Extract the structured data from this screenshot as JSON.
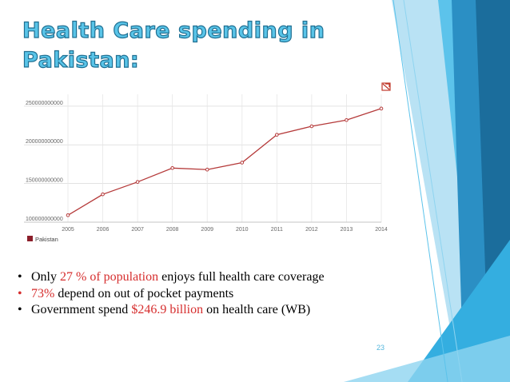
{
  "slide": {
    "title_line1": "Health Care spending in",
    "title_line2": "Pakistan:",
    "page_number": "23"
  },
  "bullets": [
    {
      "prefix": "Only ",
      "highlight": "27 % of population",
      "suffix": " enjoys full health care coverage",
      "bullet_color": "#000000"
    },
    {
      "prefix": "",
      "highlight": "73%",
      "suffix": " depend on out of pocket payments",
      "bullet_color": "#d62e2e"
    },
    {
      "prefix": "Government spend ",
      "highlight": "$246.9 billion",
      "suffix": " on health care (WB)",
      "bullet_color": "#000000"
    }
  ],
  "colors": {
    "accent_text": "#d62e2e",
    "title_fill": "#59c4e8",
    "title_outline": "#1f6f92",
    "deco_dark": "#1b6d9c",
    "deco_light": "#5cc3eb"
  },
  "icons": {
    "chart_corner": "chart-menu-icon"
  },
  "chart_data": {
    "type": "line",
    "x": [
      "2005",
      "2006",
      "2007",
      "2008",
      "2009",
      "2010",
      "2011",
      "2012",
      "2013",
      "2014"
    ],
    "series": [
      {
        "name": "Pakistan",
        "color": "#b53a3a",
        "values": [
          109000000000,
          136000000000,
          152000000000,
          170000000000,
          168000000000,
          177000000000,
          213000000000,
          224000000000,
          232000000000,
          246900000000
        ]
      }
    ],
    "y_ticks": [
      "100000000000",
      "150000000000",
      "200000000000",
      "250000000000"
    ],
    "ylim": [
      100000000000,
      255000000000
    ],
    "grid": true,
    "legend": "bottom-left"
  }
}
